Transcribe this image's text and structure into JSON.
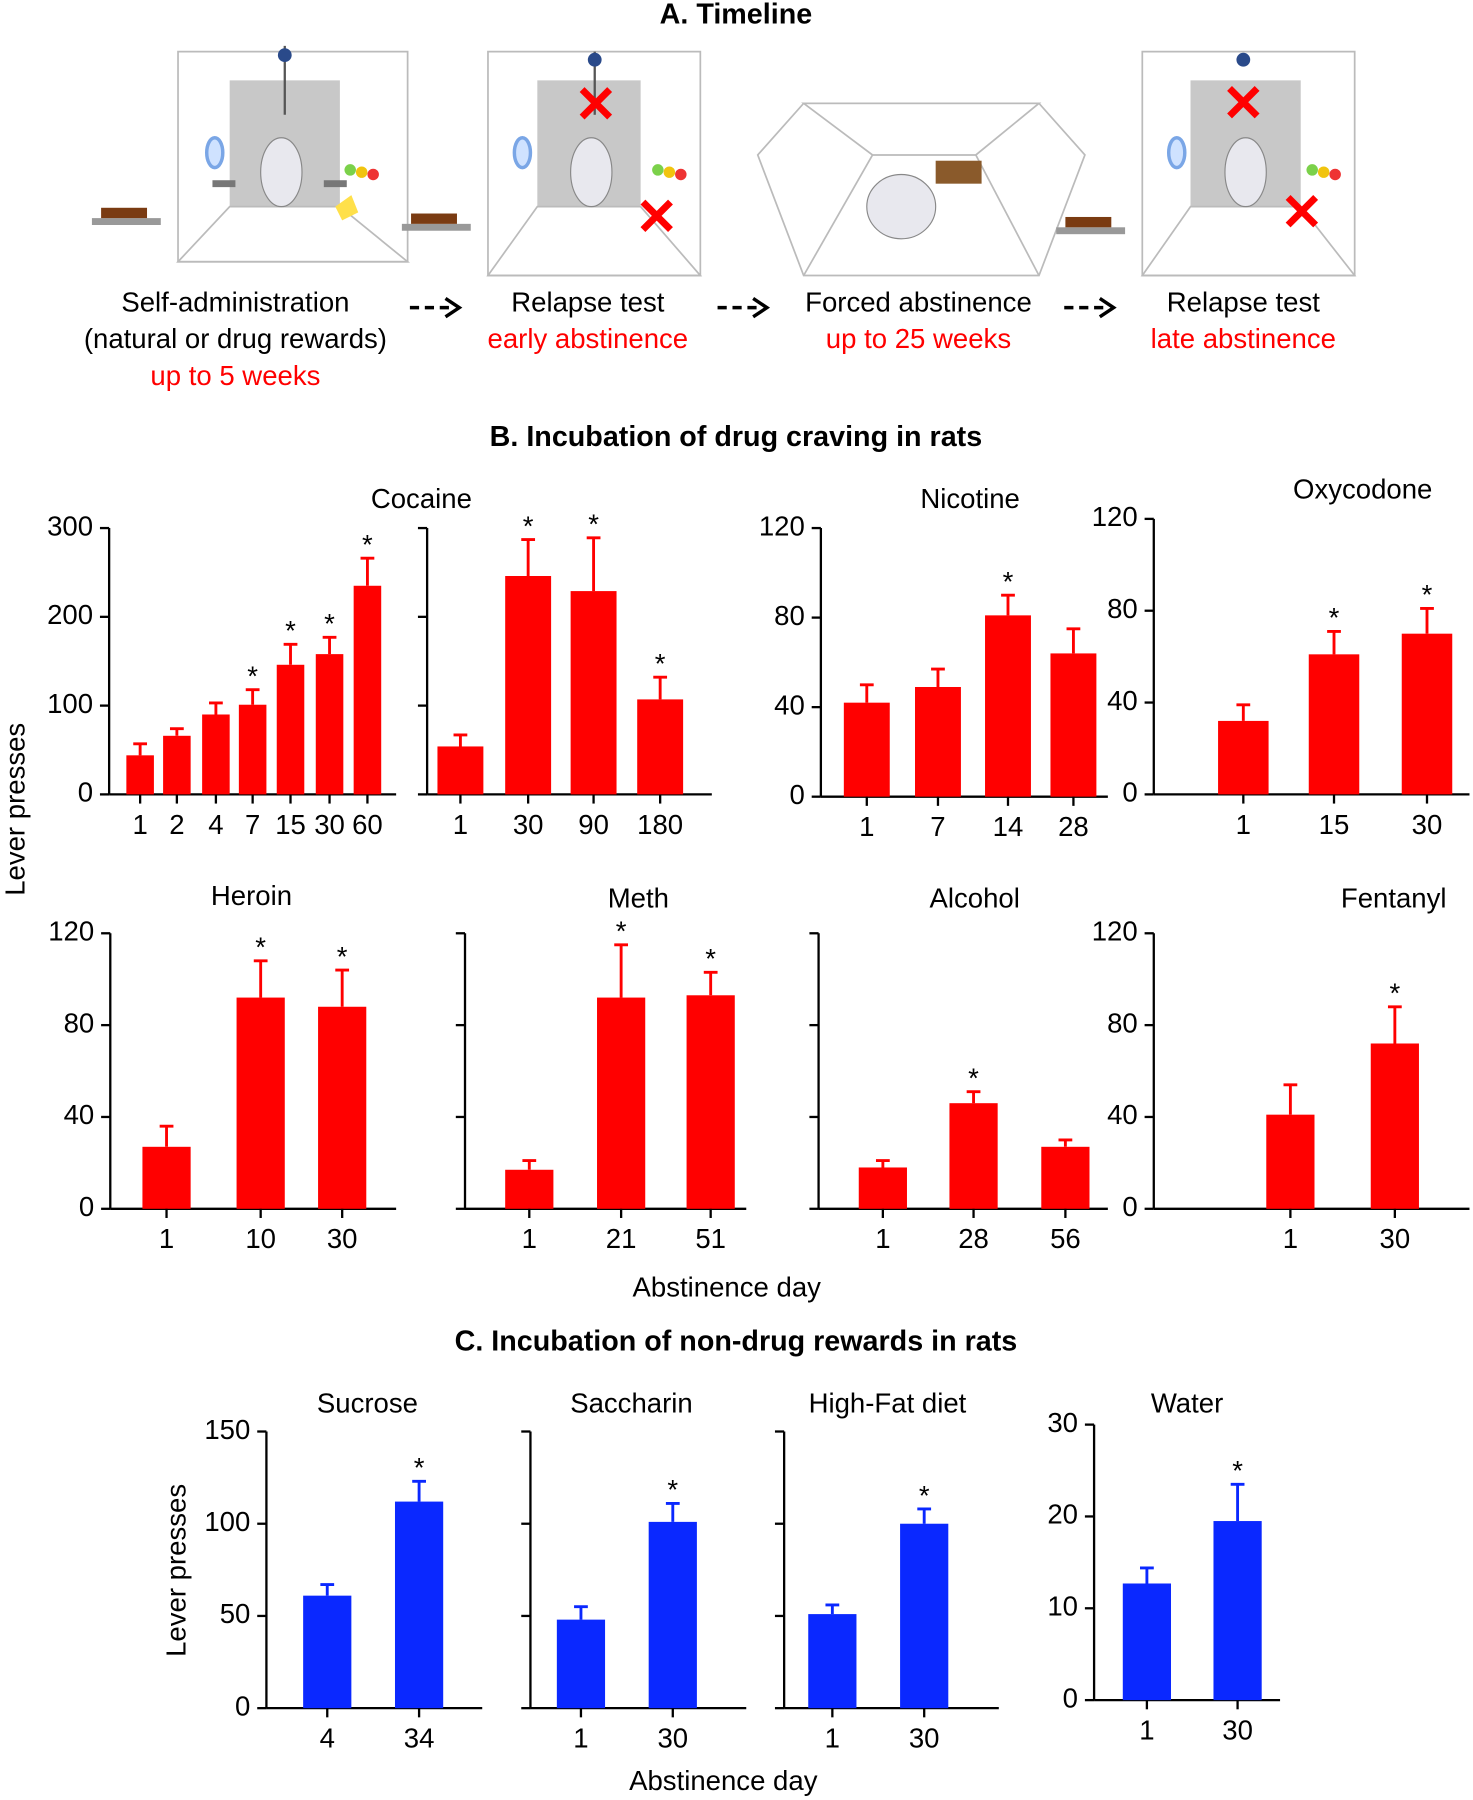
{
  "timeline": {
    "title": "A. Timeline",
    "steps": [
      {
        "lines": [
          "Self-administration",
          "(natural or drug rewards)"
        ],
        "highlight": "up to 5 weeks"
      },
      {
        "lines": [
          "Relapse test"
        ],
        "highlight": "early abstinence"
      },
      {
        "lines": [
          "Forced abstinence"
        ],
        "highlight": "up to 25 weeks"
      },
      {
        "lines": [
          "Relapse test"
        ],
        "highlight": "late abstinence"
      }
    ]
  },
  "section_b": {
    "title": "B. Incubation of drug craving in rats",
    "y_label": "Lever presses",
    "x_label": "Abstinence day"
  },
  "section_c": {
    "title": "C. Incubation of non-drug rewards in rats",
    "y_label": "Lever presses",
    "x_label": "Abstinence day"
  },
  "chart_data": [
    {
      "type": "bar",
      "title": "Cocaine",
      "categories": [
        "1",
        "2",
        "4",
        "7",
        "15",
        "30",
        "60"
      ],
      "values": [
        44,
        66,
        90,
        101,
        146,
        158,
        235
      ],
      "errors": [
        13,
        8,
        13,
        17,
        23,
        19,
        31
      ],
      "annotations": [
        null,
        null,
        null,
        "*",
        "*",
        "*",
        "*"
      ],
      "color": "#ff0000",
      "ylim": [
        0,
        300
      ],
      "yticks": [
        0,
        100,
        200,
        300
      ],
      "tick_labels": true
    },
    {
      "type": "bar",
      "categories": [
        "1",
        "30",
        "90",
        "180"
      ],
      "values": [
        54,
        246,
        229,
        107
      ],
      "errors": [
        13,
        41,
        60,
        25
      ],
      "annotations": [
        null,
        "*",
        "*",
        "*"
      ],
      "color": "#ff0000",
      "ylim": [
        0,
        300
      ],
      "yticks": [
        0,
        100,
        200,
        300
      ],
      "tick_labels": false
    },
    {
      "type": "bar",
      "title": "Nicotine",
      "categories": [
        "1",
        "7",
        "14",
        "28"
      ],
      "values": [
        42,
        49,
        81,
        64
      ],
      "errors": [
        8,
        8,
        9,
        11
      ],
      "annotations": [
        null,
        null,
        "*",
        null
      ],
      "color": "#ff0000",
      "ylim": [
        0,
        120
      ],
      "yticks": [
        0,
        40,
        80,
        120
      ],
      "tick_labels": true
    },
    {
      "type": "bar",
      "title": "Oxycodone",
      "categories": [
        "1",
        "15",
        "30"
      ],
      "values": [
        32,
        61,
        70
      ],
      "errors": [
        7,
        10,
        11
      ],
      "annotations": [
        null,
        "*",
        "*"
      ],
      "color": "#ff0000",
      "ylim": [
        0,
        120
      ],
      "yticks": [
        0,
        40,
        80,
        120
      ],
      "tick_labels": true
    },
    {
      "type": "bar",
      "title": "Heroin",
      "categories": [
        "1",
        "10",
        "30"
      ],
      "values": [
        27,
        92,
        88
      ],
      "errors": [
        9,
        16,
        16
      ],
      "annotations": [
        null,
        "*",
        "*"
      ],
      "color": "#ff0000",
      "ylim": [
        0,
        120
      ],
      "yticks": [
        0,
        40,
        80,
        120
      ],
      "tick_labels": true
    },
    {
      "type": "bar",
      "title": "Meth",
      "categories": [
        "1",
        "21",
        "51"
      ],
      "values": [
        17,
        92,
        93
      ],
      "errors": [
        4,
        23,
        10
      ],
      "annotations": [
        null,
        "*",
        "*"
      ],
      "color": "#ff0000",
      "ylim": [
        0,
        120
      ],
      "yticks": [
        0,
        40,
        80,
        120
      ],
      "tick_labels": false
    },
    {
      "type": "bar",
      "title": "Alcohol",
      "categories": [
        "1",
        "28",
        "56"
      ],
      "values": [
        18,
        46,
        27
      ],
      "errors": [
        3,
        5,
        3
      ],
      "annotations": [
        null,
        "*",
        null
      ],
      "color": "#ff0000",
      "ylim": [
        0,
        120
      ],
      "yticks": [
        0,
        40,
        80,
        120
      ],
      "tick_labels": false
    },
    {
      "type": "bar",
      "title": "Fentanyl",
      "categories": [
        "1",
        "30"
      ],
      "values": [
        41,
        72
      ],
      "errors": [
        13,
        16
      ],
      "annotations": [
        null,
        "*"
      ],
      "color": "#ff0000",
      "ylim": [
        0,
        120
      ],
      "yticks": [
        0,
        40,
        80,
        120
      ],
      "tick_labels": true
    },
    {
      "type": "bar",
      "title": "Sucrose",
      "categories": [
        "4",
        "34"
      ],
      "values": [
        61,
        112
      ],
      "errors": [
        6,
        11
      ],
      "annotations": [
        null,
        "*"
      ],
      "color": "#0a28ff",
      "ylim": [
        0,
        150
      ],
      "yticks": [
        0,
        50,
        100,
        150
      ],
      "tick_labels": true
    },
    {
      "type": "bar",
      "title": "Saccharin",
      "categories": [
        "1",
        "30"
      ],
      "values": [
        48,
        101
      ],
      "errors": [
        7,
        10
      ],
      "annotations": [
        null,
        "*"
      ],
      "color": "#0a28ff",
      "ylim": [
        0,
        150
      ],
      "yticks": [
        0,
        50,
        100,
        150
      ],
      "tick_labels": false
    },
    {
      "type": "bar",
      "title": "High-Fat diet",
      "categories": [
        "1",
        "30"
      ],
      "values": [
        51,
        100
      ],
      "errors": [
        5,
        8
      ],
      "annotations": [
        null,
        "*"
      ],
      "color": "#0a28ff",
      "ylim": [
        0,
        150
      ],
      "yticks": [
        0,
        50,
        100,
        150
      ],
      "tick_labels": false
    },
    {
      "type": "bar",
      "title": "Water",
      "categories": [
        "1",
        "30"
      ],
      "values": [
        12.7,
        19.5
      ],
      "errors": [
        1.7,
        4
      ],
      "annotations": [
        null,
        "*"
      ],
      "color": "#0a28ff",
      "ylim": [
        0,
        30
      ],
      "yticks": [
        0,
        10,
        20,
        30
      ],
      "tick_labels": true
    }
  ]
}
